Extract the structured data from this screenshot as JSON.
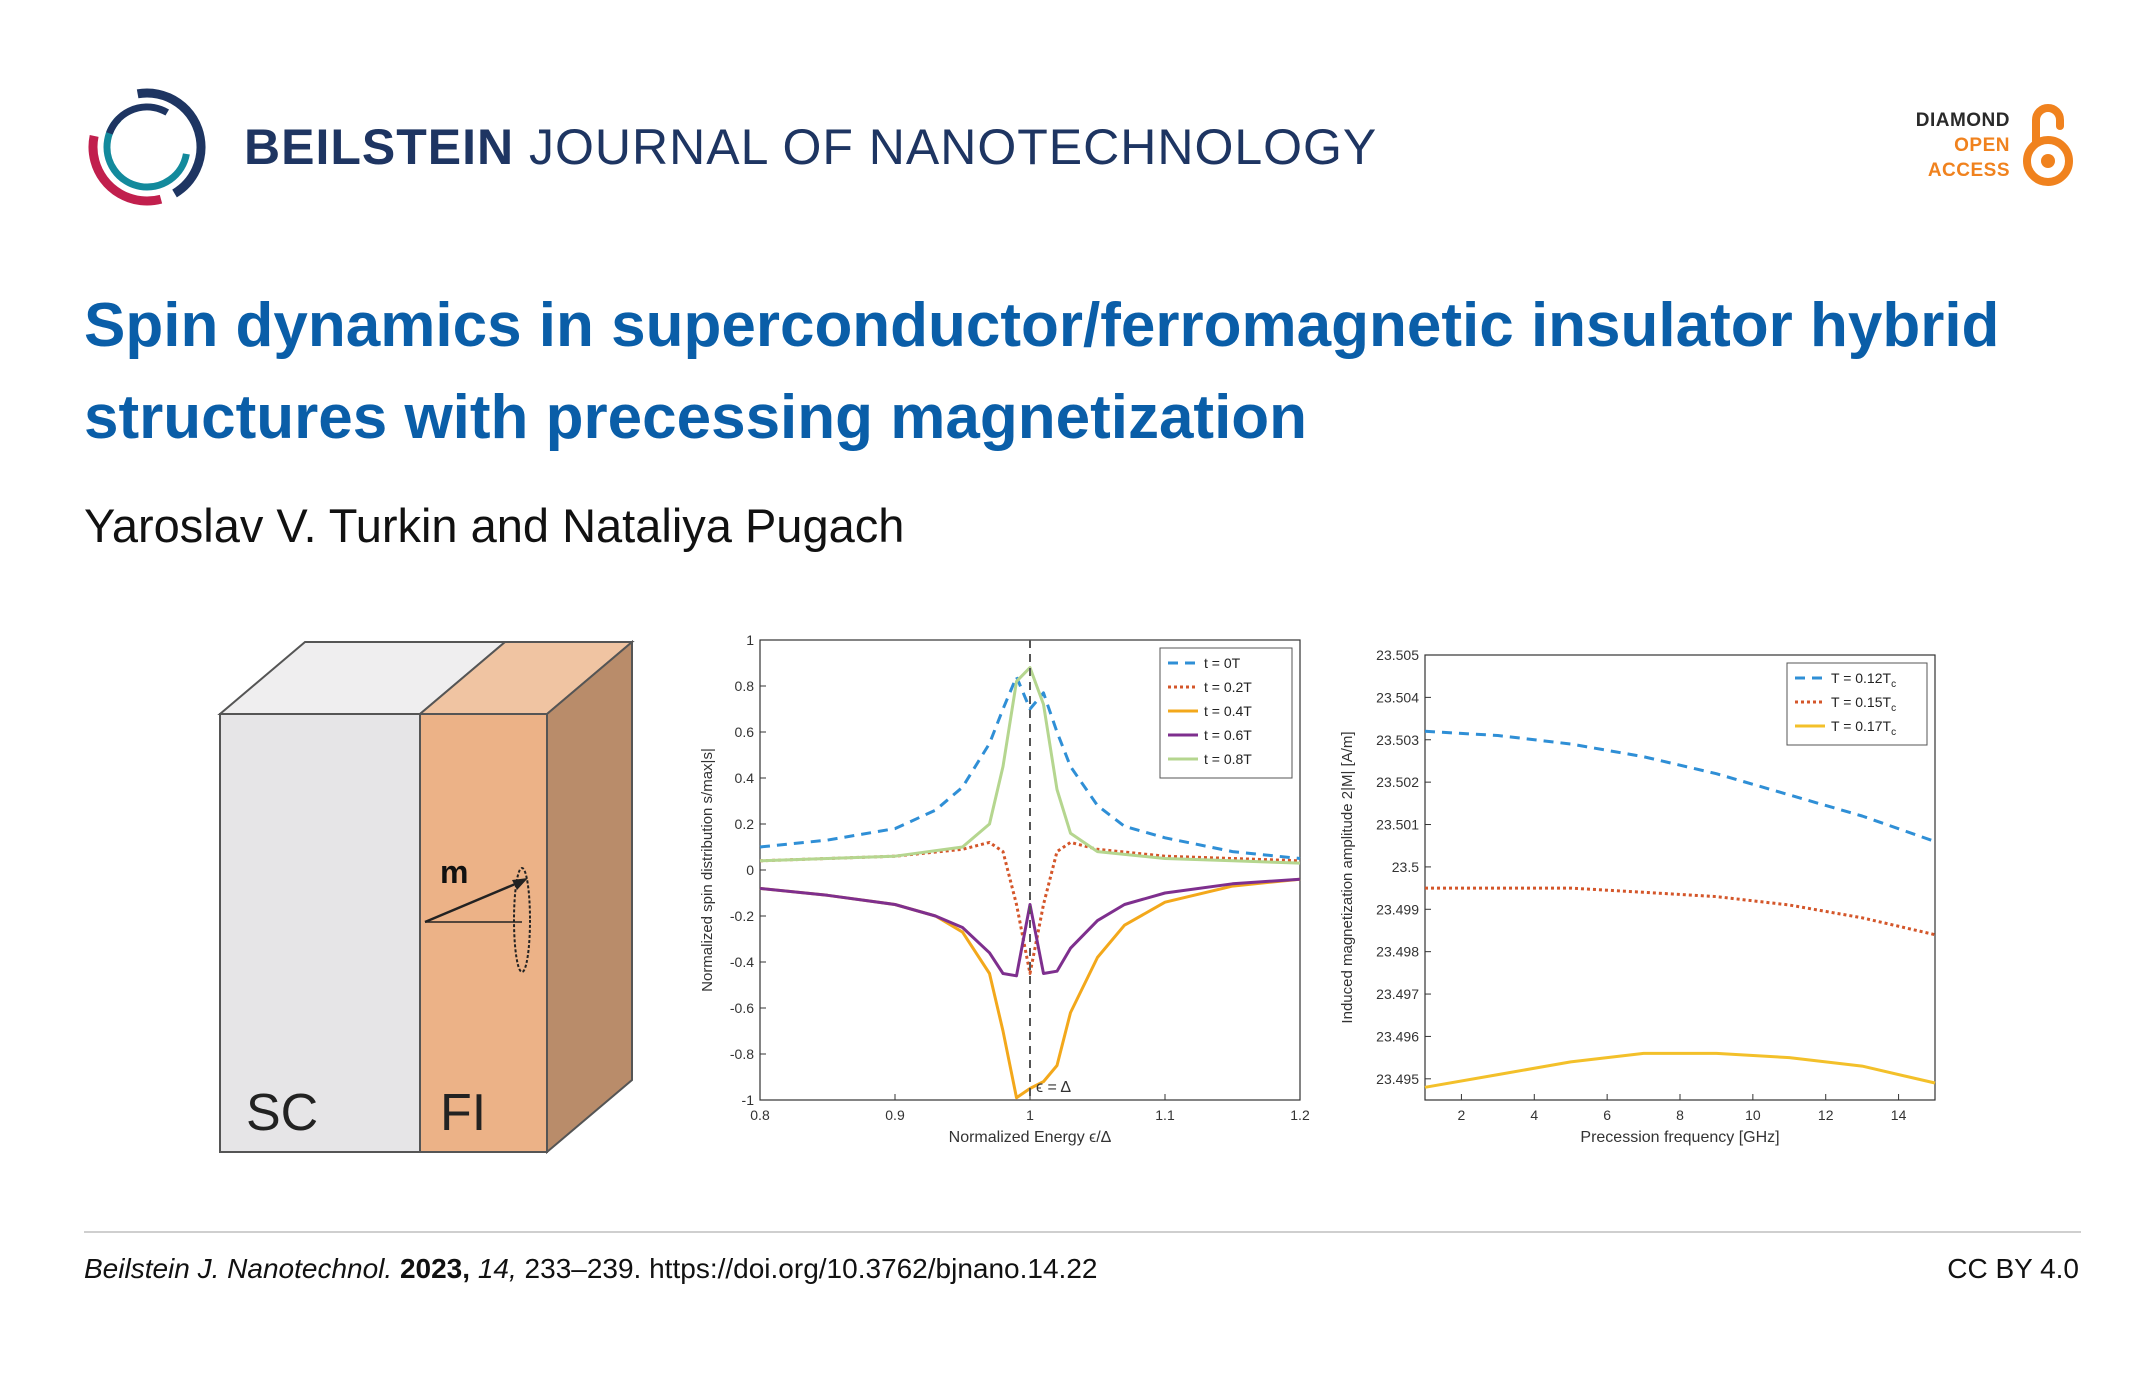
{
  "header": {
    "journal_strong": "BEILSTEIN",
    "journal_rest": " JOURNAL OF NANOTECHNOLOGY",
    "oa_line1": "DIAMOND",
    "oa_line2": "OPEN",
    "oa_line3": "ACCESS",
    "oa_colors": {
      "diamond": "#2a2a2a",
      "open_access": "#f0821e"
    }
  },
  "article": {
    "title": "Spin dynamics in superconductor/ferromagnetic insulator hybrid structures with precessing magnetization",
    "authors": "Yaroslav V. Turkin and Nataliya Pugach"
  },
  "figure_box": {
    "label_sc": "SC",
    "label_fi": "FI",
    "label_m": "m",
    "colors": {
      "sc_front": "#e6e5e7",
      "sc_top": "#efeeef",
      "fi_front": "#ecb287",
      "fi_top": "#f0c4a2",
      "fi_side": "#b98c6a"
    }
  },
  "chart_data": [
    {
      "type": "line",
      "xlabel": "Normalized Energy ϵ/Δ",
      "ylabel": "Normalized spin distribution s/max|s|",
      "xlim": [
        0.8,
        1.2
      ],
      "ylim": [
        -1,
        1
      ],
      "xticks": [
        "0.8",
        "0.9",
        "1",
        "1.1",
        "1.2"
      ],
      "yticks": [
        "1",
        "0.8",
        "0.6",
        "0.4",
        "0.2",
        "0",
        "-0.2",
        "-0.4",
        "-0.6",
        "-0.8",
        "-1"
      ],
      "annotation": "ϵ = Δ",
      "legend": "top-right",
      "series": [
        {
          "name": "t = 0T",
          "color": "#2f8fd6",
          "dash": "10,7",
          "x": [
            0.8,
            0.85,
            0.9,
            0.93,
            0.95,
            0.97,
            0.98,
            0.99,
            1.0,
            1.01,
            1.02,
            1.03,
            1.05,
            1.07,
            1.1,
            1.15,
            1.2
          ],
          "y": [
            0.1,
            0.13,
            0.18,
            0.26,
            0.36,
            0.55,
            0.7,
            0.84,
            0.7,
            0.77,
            0.6,
            0.45,
            0.28,
            0.19,
            0.14,
            0.08,
            0.05
          ]
        },
        {
          "name": "t = 0.2T",
          "color": "#d4562a",
          "dash": "3,3",
          "x": [
            0.8,
            0.85,
            0.9,
            0.95,
            0.97,
            0.98,
            0.99,
            1.0,
            1.01,
            1.02,
            1.03,
            1.05,
            1.1,
            1.15,
            1.2
          ],
          "y": [
            0.04,
            0.05,
            0.06,
            0.09,
            0.12,
            0.08,
            -0.15,
            -0.45,
            -0.15,
            0.08,
            0.12,
            0.09,
            0.06,
            0.05,
            0.04
          ]
        },
        {
          "name": "t = 0.4T",
          "color": "#f3a81b",
          "dash": "",
          "x": [
            0.8,
            0.85,
            0.9,
            0.93,
            0.95,
            0.97,
            0.98,
            0.99,
            1.0,
            1.01,
            1.02,
            1.03,
            1.05,
            1.07,
            1.1,
            1.15,
            1.2
          ],
          "y": [
            -0.08,
            -0.11,
            -0.15,
            -0.2,
            -0.27,
            -0.45,
            -0.7,
            -0.99,
            -0.95,
            -0.92,
            -0.85,
            -0.62,
            -0.38,
            -0.24,
            -0.14,
            -0.07,
            -0.04
          ]
        },
        {
          "name": "t = 0.6T",
          "color": "#7e2f8e",
          "dash": "",
          "x": [
            0.8,
            0.85,
            0.9,
            0.93,
            0.95,
            0.97,
            0.98,
            0.99,
            1.0,
            1.01,
            1.02,
            1.03,
            1.05,
            1.07,
            1.1,
            1.15,
            1.2
          ],
          "y": [
            -0.08,
            -0.11,
            -0.15,
            -0.2,
            -0.25,
            -0.36,
            -0.45,
            -0.46,
            -0.15,
            -0.45,
            -0.44,
            -0.34,
            -0.22,
            -0.15,
            -0.1,
            -0.06,
            -0.04
          ]
        },
        {
          "name": "t = 0.8T",
          "color": "#b5d68f",
          "dash": "",
          "x": [
            0.8,
            0.85,
            0.9,
            0.95,
            0.97,
            0.98,
            0.99,
            1.0,
            1.01,
            1.02,
            1.03,
            1.05,
            1.1,
            1.15,
            1.2
          ],
          "y": [
            0.04,
            0.05,
            0.06,
            0.1,
            0.2,
            0.45,
            0.82,
            0.88,
            0.72,
            0.35,
            0.16,
            0.08,
            0.05,
            0.04,
            0.03
          ]
        }
      ]
    },
    {
      "type": "line",
      "xlabel": "Precession frequency [GHz]",
      "ylabel": "Induced magnetization amplitude   2|M| [A/m]",
      "xlim": [
        1,
        15
      ],
      "ylim": [
        23.4945,
        23.505
      ],
      "xticks": [
        "2",
        "4",
        "6",
        "8",
        "10",
        "12",
        "14"
      ],
      "yticks": [
        "23.505",
        "23.504",
        "23.503",
        "23.502",
        "23.501",
        "23.5",
        "23.499",
        "23.498",
        "23.497",
        "23.496",
        "23.495"
      ],
      "legend": "top-right",
      "series": [
        {
          "name": "T = 0.12T",
          "name_sub": "c",
          "color": "#2f8fd6",
          "dash": "10,7",
          "x": [
            1,
            3,
            5,
            7,
            9,
            11,
            13,
            15
          ],
          "y": [
            23.5032,
            23.5031,
            23.5029,
            23.5026,
            23.5022,
            23.5017,
            23.5012,
            23.5006
          ]
        },
        {
          "name": "T = 0.15T",
          "name_sub": "c",
          "color": "#d4562a",
          "dash": "3,3",
          "x": [
            1,
            3,
            5,
            7,
            9,
            11,
            13,
            15
          ],
          "y": [
            23.4995,
            23.4995,
            23.4995,
            23.4994,
            23.4993,
            23.4991,
            23.4988,
            23.4984
          ]
        },
        {
          "name": "T = 0.17T",
          "name_sub": "c",
          "color": "#f3c02a",
          "dash": "",
          "x": [
            1,
            3,
            5,
            7,
            9,
            11,
            13,
            15
          ],
          "y": [
            23.4948,
            23.4951,
            23.4954,
            23.4956,
            23.4956,
            23.4955,
            23.4953,
            23.4949
          ]
        }
      ]
    }
  ],
  "footer": {
    "journal_abbrev": "Beilstein J. Nanotechnol.",
    "year": "2023,",
    "volume": "14,",
    "pages_doi": "233–239. https://doi.org/10.3762/bjnano.14.22",
    "license": "CC BY 4.0"
  }
}
